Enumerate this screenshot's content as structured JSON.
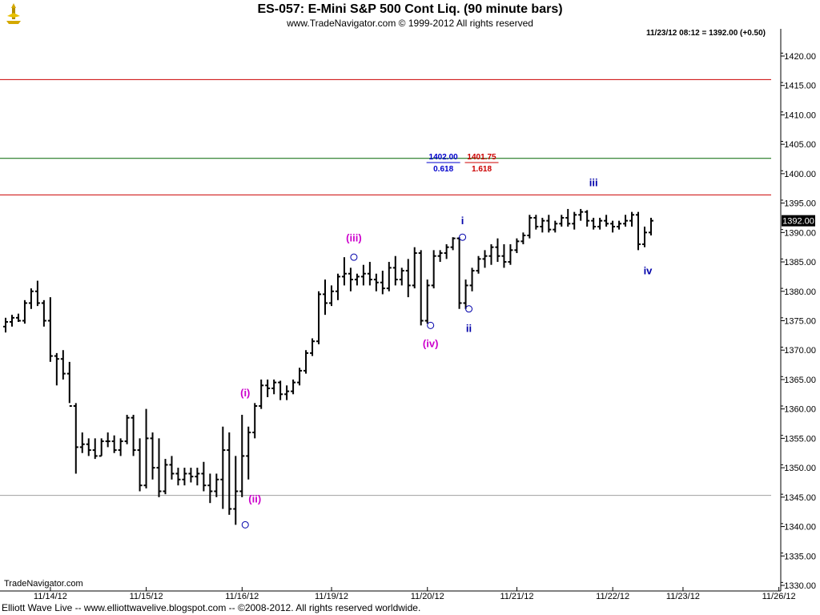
{
  "header": {
    "title": "ES-057:  E-Mini S&P 500 Cont Liq.  (90 minute bars)",
    "subtitle": "www.TradeNavigator.com © 1999-2012 All rights reserved",
    "last_quote": "11/23/12 08:12 = 1392.00 (+0.50)"
  },
  "watermark": "TradeNavigator.com",
  "footer": "Elliott Wave Live -- www.elliottwavelive.blogspot.com -- ©2008-2012. All rights reserved worldwide.",
  "colors": {
    "bars": "#000000",
    "red_line": "#cc0000",
    "green_line": "#006600",
    "gray_line": "#a0a0a0",
    "magenta_label": "#cc00cc",
    "blue_label": "#0000aa",
    "fib_blue": "#0000cc",
    "fib_red": "#cc0000"
  },
  "chart_data": {
    "type": "ohlc",
    "ylim": [
      1330,
      1425
    ],
    "y_ticks": [
      "1330.00",
      "1335.00",
      "1340.00",
      "1345.00",
      "1350.00",
      "1355.00",
      "1360.00",
      "1365.00",
      "1370.00",
      "1375.00",
      "1380.00",
      "1385.00",
      "1390.00",
      "1395.00",
      "1400.00",
      "1405.00",
      "1410.00",
      "1415.00",
      "1420.00"
    ],
    "x_ticks": [
      {
        "label": "11/14/12",
        "index": 4
      },
      {
        "label": "11/15/12",
        "index": 19
      },
      {
        "label": "11/16/12",
        "index": 34
      },
      {
        "label": "11/19/12",
        "index": 48
      },
      {
        "label": "11/20/12",
        "index": 63
      },
      {
        "label": "11/21/12",
        "index": 77
      },
      {
        "label": "11/22/12",
        "index": 92
      },
      {
        "label": "11/23/12",
        "index": 103
      },
      {
        "label": "11/26/12",
        "index": 118
      }
    ],
    "last_price_label": "1392.00",
    "horizontal_lines": [
      {
        "value": 1416.0,
        "color": "red"
      },
      {
        "value": 1402.6,
        "color": "green"
      },
      {
        "value": 1396.4,
        "color": "red"
      },
      {
        "value": 1345.3,
        "color": "gray"
      }
    ],
    "fib_labels": [
      {
        "value": "1402.00",
        "ratio": "0.618",
        "color": "blue",
        "index": 68.5
      },
      {
        "value": "1401.75",
        "ratio": "1.618",
        "color": "red",
        "index": 74.5
      }
    ],
    "wave_labels": [
      {
        "text": "(i)",
        "index": 37.5,
        "price": 1362.1,
        "color": "magenta"
      },
      {
        "text": "(ii)",
        "index": 39,
        "price": 1344.1,
        "color": "magenta"
      },
      {
        "text": "(iii)",
        "index": 54.5,
        "price": 1388.5,
        "color": "magenta"
      },
      {
        "text": "(iv)",
        "index": 66.5,
        "price": 1370.5,
        "color": "magenta"
      },
      {
        "text": "i",
        "index": 71.5,
        "price": 1391.4,
        "color": "blue"
      },
      {
        "text": "ii",
        "index": 72.5,
        "price": 1373.1,
        "color": "blue"
      },
      {
        "text": "iii",
        "index": 92,
        "price": 1397.9,
        "color": "blue"
      },
      {
        "text": "iv",
        "index": 100.5,
        "price": 1382.9,
        "color": "blue"
      }
    ],
    "wave_markers": [
      {
        "index": 37.5,
        "price": 1340.3
      },
      {
        "index": 54.5,
        "price": 1385.8
      },
      {
        "index": 66.5,
        "price": 1374.2
      },
      {
        "index": 71.5,
        "price": 1389.2
      },
      {
        "index": 72.5,
        "price": 1377.0
      }
    ],
    "ohlc": [
      [
        1374.0,
        1375.5,
        1373.0,
        1374.8
      ],
      [
        1374.8,
        1376.0,
        1374.0,
        1375.5
      ],
      [
        1375.5,
        1376.2,
        1374.8,
        1375.0
      ],
      [
        1375.0,
        1378.5,
        1374.5,
        1378.0
      ],
      [
        1378.0,
        1380.5,
        1377.0,
        1380.0
      ],
      [
        1380.0,
        1381.8,
        1377.5,
        1378.0
      ],
      [
        1378.0,
        1378.5,
        1374.0,
        1375.0
      ],
      [
        1375.0,
        1379.0,
        1368.0,
        1369.0
      ],
      [
        1369.0,
        1369.5,
        1364.0,
        1368.5
      ],
      [
        1368.5,
        1370.0,
        1365.0,
        1366.0
      ],
      [
        1366.0,
        1368.0,
        1361.0,
        1360.5
      ],
      [
        1360.5,
        1361.0,
        1349.0,
        1353.5
      ],
      [
        1353.5,
        1356.0,
        1352.5,
        1354.0
      ],
      [
        1354.0,
        1355.0,
        1352.0,
        1353.0
      ],
      [
        1353.0,
        1355.0,
        1351.5,
        1352.0
      ],
      [
        1352.0,
        1355.0,
        1352.0,
        1354.5
      ],
      [
        1354.5,
        1356.0,
        1353.5,
        1354.5
      ],
      [
        1354.5,
        1355.5,
        1352.5,
        1353.0
      ],
      [
        1353.0,
        1355.0,
        1352.0,
        1354.5
      ],
      [
        1354.5,
        1359.0,
        1354.0,
        1358.5
      ],
      [
        1358.5,
        1359.0,
        1352.0,
        1353.0
      ],
      [
        1353.0,
        1355.0,
        1346.0,
        1347.0
      ],
      [
        1347.0,
        1360.0,
        1346.5,
        1355.0
      ],
      [
        1355.0,
        1356.0,
        1348.0,
        1350.0
      ],
      [
        1350.0,
        1355.0,
        1345.0,
        1346.0
      ],
      [
        1346.0,
        1351.5,
        1345.5,
        1350.5
      ],
      [
        1350.5,
        1352.0,
        1348.0,
        1349.0
      ],
      [
        1349.0,
        1350.0,
        1347.0,
        1348.0
      ],
      [
        1348.0,
        1350.0,
        1347.0,
        1349.0
      ],
      [
        1349.0,
        1350.0,
        1347.5,
        1348.5
      ],
      [
        1348.5,
        1350.0,
        1347.0,
        1349.0
      ],
      [
        1349.0,
        1351.0,
        1346.0,
        1347.0
      ],
      [
        1347.0,
        1349.0,
        1344.0,
        1346.0
      ],
      [
        1346.0,
        1349.0,
        1345.0,
        1348.0
      ],
      [
        1348.0,
        1357.0,
        1343.0,
        1353.0
      ],
      [
        1353.0,
        1356.0,
        1342.0,
        1343.0
      ],
      [
        1343.0,
        1352.0,
        1340.3,
        1346.0
      ],
      [
        1346.0,
        1359.0,
        1345.0,
        1352.0
      ],
      [
        1352.0,
        1357.0,
        1348.0,
        1356.0
      ],
      [
        1356.0,
        1361.0,
        1355.0,
        1360.5
      ],
      [
        1360.5,
        1365.0,
        1360.0,
        1364.0
      ],
      [
        1364.0,
        1365.0,
        1362.0,
        1363.5
      ],
      [
        1363.5,
        1365.0,
        1362.5,
        1364.5
      ],
      [
        1364.5,
        1364.8,
        1361.5,
        1362.5
      ],
      [
        1362.5,
        1364.0,
        1361.5,
        1363.0
      ],
      [
        1363.0,
        1365.0,
        1362.5,
        1364.5
      ],
      [
        1364.5,
        1367.0,
        1364.0,
        1366.5
      ],
      [
        1366.5,
        1370.0,
        1366.0,
        1369.5
      ],
      [
        1369.5,
        1372.0,
        1369.0,
        1371.5
      ],
      [
        1371.5,
        1380.0,
        1371.0,
        1379.5
      ],
      [
        1379.5,
        1382.0,
        1376.0,
        1378.0
      ],
      [
        1378.0,
        1381.0,
        1377.5,
        1380.0
      ],
      [
        1380.0,
        1383.0,
        1378.5,
        1382.5
      ],
      [
        1382.5,
        1385.8,
        1381.0,
        1383.0
      ],
      [
        1383.0,
        1384.0,
        1380.0,
        1382.0
      ],
      [
        1382.0,
        1383.0,
        1381.0,
        1382.5
      ],
      [
        1382.5,
        1384.5,
        1381.0,
        1383.0
      ],
      [
        1383.0,
        1385.0,
        1381.0,
        1382.0
      ],
      [
        1382.0,
        1383.0,
        1380.0,
        1381.5
      ],
      [
        1381.5,
        1383.5,
        1379.5,
        1380.5
      ],
      [
        1380.5,
        1385.0,
        1380.0,
        1384.0
      ],
      [
        1384.0,
        1386.0,
        1381.0,
        1382.0
      ],
      [
        1382.0,
        1384.0,
        1381.0,
        1383.5
      ],
      [
        1383.5,
        1385.5,
        1379.0,
        1381.0
      ],
      [
        1381.0,
        1387.5,
        1380.5,
        1386.5
      ],
      [
        1386.5,
        1387.0,
        1374.2,
        1375.0
      ],
      [
        1375.0,
        1382.0,
        1374.5,
        1381.0
      ],
      [
        1381.0,
        1387.0,
        1380.5,
        1386.0
      ],
      [
        1386.0,
        1387.0,
        1385.0,
        1386.5
      ],
      [
        1386.5,
        1388.0,
        1385.5,
        1387.5
      ],
      [
        1387.5,
        1389.2,
        1387.0,
        1389.0
      ],
      [
        1389.0,
        1389.2,
        1377.0,
        1378.0
      ],
      [
        1378.0,
        1382.0,
        1377.0,
        1381.0
      ],
      [
        1381.0,
        1384.0,
        1380.0,
        1383.5
      ],
      [
        1383.5,
        1386.0,
        1383.0,
        1385.5
      ],
      [
        1385.5,
        1387.0,
        1384.0,
        1386.0
      ],
      [
        1386.0,
        1388.0,
        1384.5,
        1387.5
      ],
      [
        1387.5,
        1389.0,
        1385.0,
        1386.0
      ],
      [
        1386.0,
        1388.0,
        1384.0,
        1385.0
      ],
      [
        1385.0,
        1388.0,
        1384.5,
        1387.0
      ],
      [
        1387.0,
        1389.0,
        1386.5,
        1388.5
      ],
      [
        1388.5,
        1390.0,
        1388.0,
        1389.5
      ],
      [
        1389.5,
        1393.0,
        1389.0,
        1392.5
      ],
      [
        1392.5,
        1393.0,
        1390.5,
        1391.0
      ],
      [
        1391.0,
        1392.5,
        1390.0,
        1392.0
      ],
      [
        1392.0,
        1393.0,
        1390.0,
        1390.5
      ],
      [
        1390.5,
        1392.0,
        1390.0,
        1391.5
      ],
      [
        1391.5,
        1393.0,
        1391.0,
        1392.5
      ],
      [
        1392.5,
        1394.0,
        1391.0,
        1391.5
      ],
      [
        1391.5,
        1393.5,
        1390.5,
        1393.0
      ],
      [
        1393.0,
        1394.0,
        1392.0,
        1393.5
      ],
      [
        1393.5,
        1393.8,
        1391.0,
        1392.0
      ],
      [
        1392.0,
        1392.5,
        1390.5,
        1391.0
      ],
      [
        1391.0,
        1392.5,
        1390.5,
        1392.0
      ],
      [
        1392.0,
        1393.0,
        1391.0,
        1391.5
      ],
      [
        1391.5,
        1392.0,
        1390.0,
        1391.0
      ],
      [
        1391.0,
        1392.0,
        1390.5,
        1391.5
      ],
      [
        1391.5,
        1393.0,
        1391.0,
        1392.0
      ],
      [
        1392.0,
        1393.5,
        1391.0,
        1393.0
      ],
      [
        1393.0,
        1393.5,
        1387.0,
        1388.0
      ],
      [
        1388.0,
        1391.0,
        1387.5,
        1390.0
      ],
      [
        1390.0,
        1392.5,
        1389.5,
        1392.0
      ]
    ]
  }
}
